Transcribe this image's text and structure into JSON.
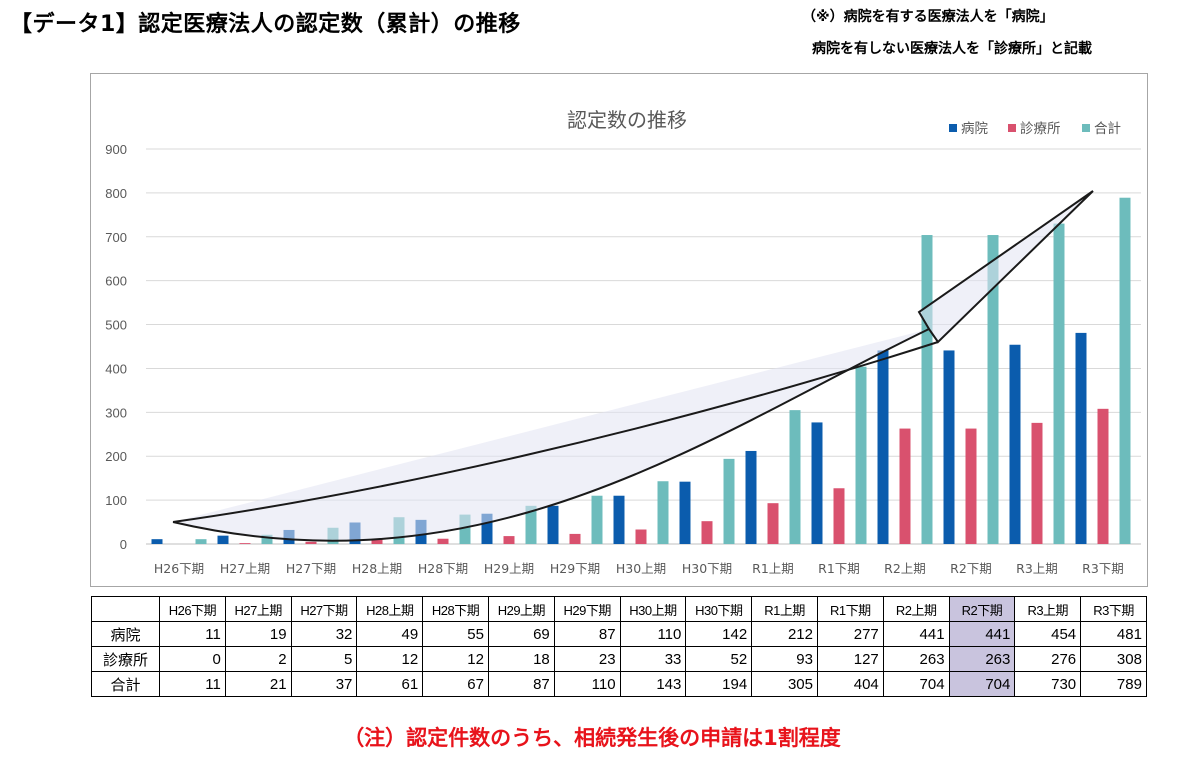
{
  "page_title": "【データ1】認定医療法人の認定数（累計）の推移",
  "notes": {
    "line1": "（※）病院を有する医療法人を「病院」",
    "line2": "病院を有しない医療法人を「診療所」と記載"
  },
  "chart_data": {
    "type": "bar",
    "title": "認定数の推移",
    "categories": [
      "H26下期",
      "H27上期",
      "H27下期",
      "H28上期",
      "H28下期",
      "H29上期",
      "H29下期",
      "H30上期",
      "H30下期",
      "R1上期",
      "R1下期",
      "R2上期",
      "R2下期",
      "R3上期",
      "R3下期"
    ],
    "series": [
      {
        "name": "病院",
        "color": "#0b5cad",
        "values": [
          11,
          19,
          32,
          49,
          55,
          69,
          87,
          110,
          142,
          212,
          277,
          441,
          441,
          454,
          481
        ]
      },
      {
        "name": "診療所",
        "color": "#d9516e",
        "values": [
          0,
          2,
          5,
          12,
          12,
          18,
          23,
          33,
          52,
          93,
          127,
          263,
          263,
          276,
          308
        ]
      },
      {
        "name": "合計",
        "color": "#6dbcbc",
        "values": [
          11,
          21,
          37,
          61,
          67,
          87,
          110,
          143,
          194,
          305,
          404,
          704,
          704,
          730,
          789
        ]
      }
    ],
    "ylim": [
      0,
      900
    ],
    "yticks": [
      0,
      100,
      200,
      300,
      400,
      500,
      600,
      700,
      800,
      900
    ],
    "grid": true,
    "legend_position": "top-right",
    "annotation": "trend-arrow"
  },
  "table": {
    "row_labels": [
      "病院",
      "診療所",
      "合計"
    ],
    "highlight_column": "R2下期",
    "highlight_color": "#c9c4de"
  },
  "footnote": "（注）認定件数のうち、相続発生後の申請は1割程度",
  "colors": {
    "footnote": "#e8131b",
    "grid": "#d9d9d9",
    "axis_text": "#595959"
  }
}
